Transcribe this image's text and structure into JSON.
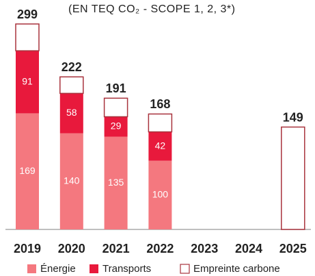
{
  "chart_data": {
    "type": "stacked_bar",
    "subtitle": "(EN TEQ CO₂ - SCOPE 1, 2, 3*)",
    "categories": [
      "2019",
      "2020",
      "2021",
      "2022",
      "2023",
      "2024",
      "2025"
    ],
    "series": [
      {
        "name": "Énergie",
        "color": "#f4787f",
        "show_labels": true,
        "values": [
          169,
          140,
          135,
          100,
          null,
          null,
          null
        ]
      },
      {
        "name": "Transports",
        "color": "#e8193c",
        "show_labels": true,
        "values": [
          91,
          58,
          29,
          42,
          null,
          null,
          null
        ]
      },
      {
        "name": "Empreinte carbone",
        "color": "#ffffff",
        "stroke": "#a8323c",
        "show_labels": false,
        "values": [
          39,
          24,
          27,
          26,
          null,
          null,
          149
        ]
      }
    ],
    "totals": [
      299,
      222,
      191,
      168,
      null,
      null,
      149
    ],
    "ylim": [
      0,
      300
    ],
    "legend": "bottom"
  }
}
